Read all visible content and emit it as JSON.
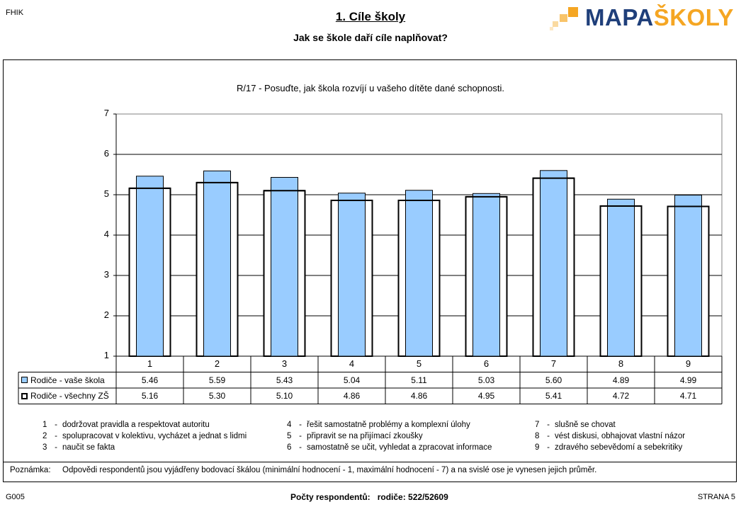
{
  "header": {
    "school_code": "FHIK",
    "title": "1. Cíle školy",
    "subtitle": "Jak se škole daří cíle naplňovat?",
    "logo_text_a": "MAPA",
    "logo_text_b": "ŠKOLY",
    "logo_color_a": "#1f3f7a",
    "logo_color_b": "#f5a623"
  },
  "chart_data": {
    "type": "bar",
    "title": "R/17 - Posuďte, jak škola rozvíjí u vašeho dítěte dané schopnosti.",
    "categories": [
      "1",
      "2",
      "3",
      "4",
      "5",
      "6",
      "7",
      "8",
      "9"
    ],
    "ylim": [
      1,
      7
    ],
    "yticks": [
      "1",
      "2",
      "3",
      "4",
      "5",
      "6",
      "7"
    ],
    "grid": true,
    "series": [
      {
        "name": "Rodiče - vaše škola",
        "values": [
          5.46,
          5.59,
          5.43,
          5.04,
          5.11,
          5.03,
          5.6,
          4.89,
          4.99
        ],
        "labels": [
          "5.46",
          "5.59",
          "5.43",
          "5.04",
          "5.11",
          "5.03",
          "5.60",
          "4.89",
          "4.99"
        ],
        "color": "#99ccff"
      },
      {
        "name": "Rodiče - všechny ZŠ",
        "values": [
          5.16,
          5.3,
          5.1,
          4.86,
          4.86,
          4.95,
          5.41,
          4.72,
          4.71
        ],
        "labels": [
          "5.16",
          "5.30",
          "5.10",
          "4.86",
          "4.86",
          "4.95",
          "5.41",
          "4.72",
          "4.71"
        ],
        "color": "#ffffff"
      }
    ]
  },
  "notes": [
    {
      "num": "1",
      "text": "dodržovat pravidla a respektovat autoritu"
    },
    {
      "num": "2",
      "text": "spolupracovat v kolektivu, vycházet a jednat s lidmi"
    },
    {
      "num": "3",
      "text": "naučit se fakta"
    },
    {
      "num": "4",
      "text": "řešit samostatně problémy a komplexní úlohy"
    },
    {
      "num": "5",
      "text": "připravit se na přijímací zkoušky"
    },
    {
      "num": "6",
      "text": "samostatně se učit, vyhledat a zpracovat informace"
    },
    {
      "num": "7",
      "text": "slušně se chovat"
    },
    {
      "num": "8",
      "text": "vést diskusi, obhajovat vlastní názor"
    },
    {
      "num": "9",
      "text": "zdravého sebevědomí a sebekritiky"
    }
  ],
  "remark": {
    "label": "Poznámka:",
    "text": "Odpovědi respondentů jsou vyjádřeny bodovací škálou (minimální hodnocení - 1, maximální hodnocení - 7) a na svislé ose je vynesen jejich průměr."
  },
  "footer": {
    "code": "G005",
    "respondents_label": "Počty respondentů:",
    "respondents_value": "rodiče: 522/52609",
    "page": "STRANA 5"
  }
}
